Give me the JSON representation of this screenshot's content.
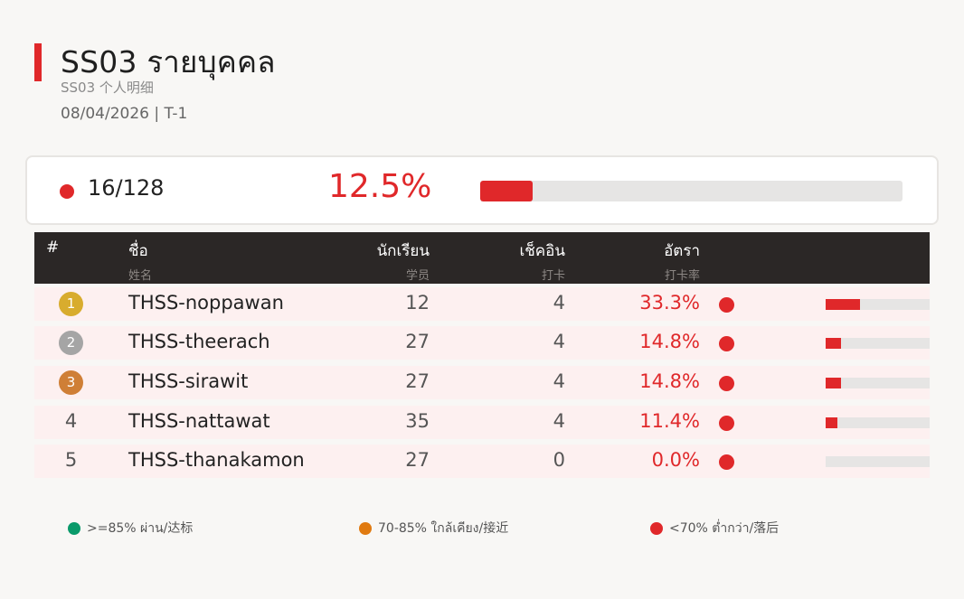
{
  "header": {
    "title": "SS03  รายบุคคล",
    "subtitle": "SS03  个人明细",
    "dateline": "08/04/2026  |  T-1"
  },
  "colors": {
    "accent": "#e0282a",
    "green": "#0a9a6a",
    "orange": "#e07a10",
    "red": "#e0282a"
  },
  "summary": {
    "count": "16/128",
    "rate": "12.5%",
    "rate_value": 12.5
  },
  "table": {
    "columns": {
      "rank": {
        "label": "#"
      },
      "name": {
        "label": "ชื่อ",
        "sub": "姓名"
      },
      "students": {
        "label": "นักเรียน",
        "sub": "学员"
      },
      "checkin": {
        "label": "เช็คอิน",
        "sub": "打卡"
      },
      "rate": {
        "label": "อัตรา",
        "sub": "打卡率"
      }
    },
    "rows": [
      {
        "rank": "1",
        "name": "THSS-noppawan",
        "students": "12",
        "checkin": "4",
        "rate": "33.3%",
        "rate_value": 33.3,
        "badge_color": "#d8ac2e"
      },
      {
        "rank": "2",
        "name": "THSS-theerach",
        "students": "27",
        "checkin": "4",
        "rate": "14.8%",
        "rate_value": 14.8,
        "badge_color": "#a5a5a5"
      },
      {
        "rank": "3",
        "name": "THSS-sirawit",
        "students": "27",
        "checkin": "4",
        "rate": "14.8%",
        "rate_value": 14.8,
        "badge_color": "#cf7f36"
      },
      {
        "rank": "4",
        "name": "THSS-nattawat",
        "students": "35",
        "checkin": "4",
        "rate": "11.4%",
        "rate_value": 11.4,
        "badge_color": ""
      },
      {
        "rank": "5",
        "name": "THSS-thanakamon",
        "students": "27",
        "checkin": "0",
        "rate": "0.0%",
        "rate_value": 0.0,
        "badge_color": ""
      }
    ]
  },
  "legend": [
    {
      "text": ">=85% ผ่าน/达标",
      "color": "#0a9a6a"
    },
    {
      "text": "70-85% ใกล้เคียง/接近",
      "color": "#e07a10"
    },
    {
      "text": "<70% ต่ำกว่า/落后",
      "color": "#e0282a"
    }
  ]
}
